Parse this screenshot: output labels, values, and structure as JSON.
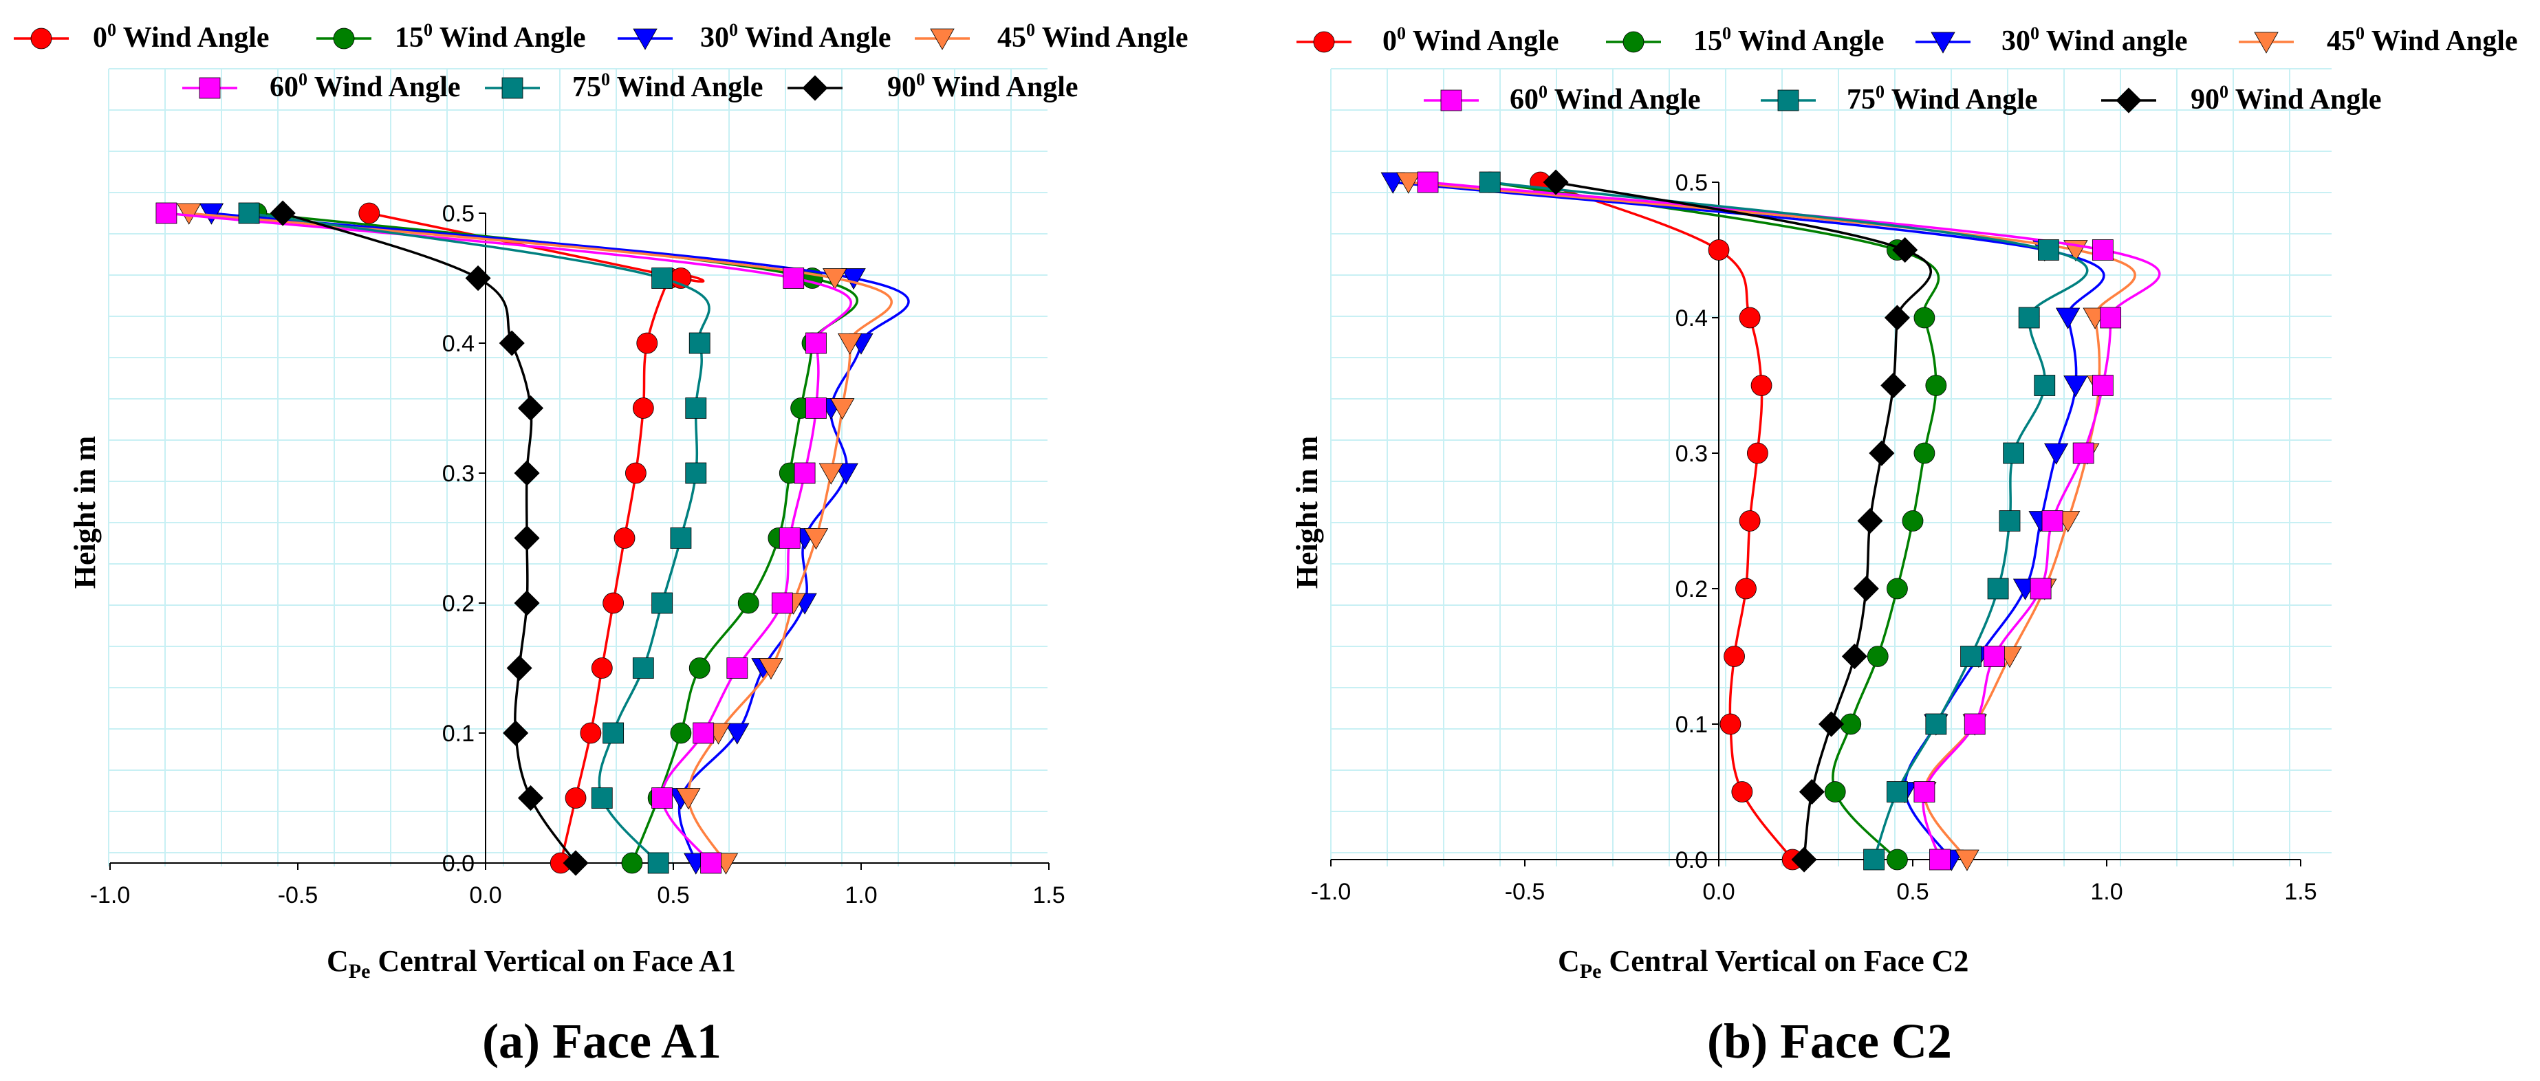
{
  "chart_data": [
    {
      "type": "line",
      "caption": "(a) Face A1",
      "xlabel": "Central Vertical on Face A1",
      "xlabel_symbol": "C",
      "xlabel_sub": "Pe",
      "ylabel": "Height in m",
      "xlim": [
        -1.0,
        1.5
      ],
      "ylim": [
        0.0,
        0.5
      ],
      "xticks": [
        "-1.0",
        "-0.5",
        "0.0",
        "0.5",
        "1.0",
        "1.5"
      ],
      "yticks": [
        "0.0",
        "0.1",
        "0.2",
        "0.3",
        "0.4",
        "0.5"
      ],
      "grid": true,
      "legend_position": "top",
      "series": [
        {
          "name": "Wind Angle",
          "angle": "0",
          "color": "#ff0000",
          "marker": "circle",
          "x": [
            0.2,
            0.24,
            0.28,
            0.31,
            0.34,
            0.37,
            0.4,
            0.42,
            0.43,
            0.49,
            0.52,
            -0.31
          ],
          "y": [
            0.0,
            0.05,
            0.1,
            0.15,
            0.2,
            0.25,
            0.3,
            0.35,
            0.4,
            0.45,
            0.45,
            0.5
          ]
        },
        {
          "name": "Wind Angle",
          "angle": "15",
          "color": "#008000",
          "marker": "circle",
          "x": [
            0.39,
            0.46,
            0.52,
            0.57,
            0.7,
            0.78,
            0.81,
            0.84,
            0.87,
            0.87,
            -0.61
          ],
          "y": [
            0.0,
            0.05,
            0.1,
            0.15,
            0.2,
            0.25,
            0.3,
            0.35,
            0.4,
            0.45,
            0.5
          ]
        },
        {
          "name": "Wind Angle",
          "angle": "30",
          "color": "#0000ff",
          "marker": "triangle-down",
          "x": [
            0.56,
            0.52,
            0.67,
            0.74,
            0.85,
            0.85,
            0.96,
            0.92,
            1.0,
            0.98,
            -0.73
          ],
          "y": [
            0.0,
            0.05,
            0.1,
            0.15,
            0.2,
            0.25,
            0.3,
            0.35,
            0.4,
            0.45,
            0.5
          ]
        },
        {
          "name": "Wind Angle",
          "angle": "45",
          "color": "#ff8040",
          "marker": "triangle-down",
          "x": [
            0.64,
            0.54,
            0.62,
            0.76,
            0.82,
            0.88,
            0.92,
            0.95,
            0.97,
            0.93,
            -0.79
          ],
          "y": [
            0.0,
            0.05,
            0.1,
            0.15,
            0.2,
            0.25,
            0.3,
            0.35,
            0.4,
            0.45,
            0.5
          ]
        },
        {
          "name": "Wind Angle",
          "angle": "60",
          "color": "#ff00ff",
          "marker": "square",
          "x": [
            0.6,
            0.47,
            0.58,
            0.67,
            0.79,
            0.81,
            0.85,
            0.88,
            0.88,
            0.82,
            -0.85
          ],
          "y": [
            0.0,
            0.05,
            0.1,
            0.15,
            0.2,
            0.25,
            0.3,
            0.35,
            0.4,
            0.45,
            0.5
          ]
        },
        {
          "name": "Wind Angle",
          "angle": "75",
          "color": "#008080",
          "marker": "square",
          "x": [
            0.46,
            0.31,
            0.34,
            0.42,
            0.47,
            0.52,
            0.56,
            0.56,
            0.57,
            0.47,
            -0.63
          ],
          "y": [
            0.0,
            0.05,
            0.1,
            0.15,
            0.2,
            0.25,
            0.3,
            0.35,
            0.4,
            0.45,
            0.5
          ]
        },
        {
          "name": "Wind Angle",
          "angle": "90",
          "color": "#000000",
          "marker": "diamond",
          "x": [
            0.24,
            0.12,
            0.08,
            0.09,
            0.11,
            0.11,
            0.11,
            0.12,
            0.07,
            -0.02,
            -0.54
          ],
          "y": [
            0.0,
            0.05,
            0.1,
            0.15,
            0.2,
            0.25,
            0.3,
            0.35,
            0.4,
            0.45,
            0.5
          ]
        }
      ]
    },
    {
      "type": "line",
      "caption": "(b) Face C2",
      "xlabel": "Central Vertical on Face C2",
      "xlabel_symbol": "C",
      "xlabel_sub": "Pe",
      "ylabel": "Height in m",
      "xlim": [
        -1.0,
        1.5
      ],
      "ylim": [
        0.0,
        0.5
      ],
      "xticks": [
        "-1.0",
        "-0.5",
        "0.0",
        "0.5",
        "1.0",
        "1.5"
      ],
      "yticks": [
        "0.0",
        "0.1",
        "0.2",
        "0.3",
        "0.4",
        "0.5"
      ],
      "grid": true,
      "legend_position": "top",
      "series": [
        {
          "name": "Wind Angle",
          "angle": "0",
          "color": "#ff0000",
          "marker": "circle",
          "x": [
            0.19,
            0.06,
            0.03,
            0.04,
            0.07,
            0.08,
            0.1,
            0.11,
            0.08,
            0.0,
            -0.46
          ],
          "y": [
            0.0,
            0.05,
            0.1,
            0.15,
            0.2,
            0.25,
            0.3,
            0.35,
            0.4,
            0.45,
            0.5
          ]
        },
        {
          "name": "Wind Angle",
          "angle": "15",
          "color": "#008000",
          "marker": "circle",
          "x": [
            0.46,
            0.3,
            0.34,
            0.41,
            0.46,
            0.5,
            0.53,
            0.56,
            0.53,
            0.46,
            -0.59
          ],
          "y": [
            0.0,
            0.05,
            0.1,
            0.15,
            0.2,
            0.25,
            0.3,
            0.35,
            0.4,
            0.45,
            0.5
          ]
        },
        {
          "name": "Wind angle",
          "angle": "30",
          "color": "#0000ff",
          "marker": "triangle-down",
          "x": [
            0.6,
            0.48,
            0.56,
            0.67,
            0.79,
            0.83,
            0.87,
            0.92,
            0.9,
            0.84,
            -0.84
          ],
          "y": [
            0.0,
            0.05,
            0.1,
            0.15,
            0.2,
            0.25,
            0.3,
            0.35,
            0.4,
            0.45,
            0.5
          ]
        },
        {
          "name": "Wind Angle",
          "angle": "45",
          "color": "#ff8040",
          "marker": "triangle-down",
          "x": [
            0.64,
            0.53,
            0.66,
            0.75,
            0.84,
            0.9,
            0.95,
            0.98,
            0.97,
            0.92,
            -0.8
          ],
          "y": [
            0.0,
            0.05,
            0.1,
            0.15,
            0.2,
            0.25,
            0.3,
            0.35,
            0.4,
            0.45,
            0.5
          ]
        },
        {
          "name": "Wind Angle",
          "angle": "60",
          "color": "#ff00ff",
          "marker": "square",
          "x": [
            0.57,
            0.53,
            0.66,
            0.71,
            0.83,
            0.86,
            0.94,
            0.99,
            1.01,
            0.99,
            -0.75
          ],
          "y": [
            0.0,
            0.05,
            0.1,
            0.15,
            0.2,
            0.25,
            0.3,
            0.35,
            0.4,
            0.45,
            0.5
          ]
        },
        {
          "name": "Wind Angle",
          "angle": "75",
          "color": "#008080",
          "marker": "square",
          "x": [
            0.4,
            0.46,
            0.56,
            0.65,
            0.72,
            0.75,
            0.76,
            0.84,
            0.8,
            0.85,
            -0.59
          ],
          "y": [
            0.0,
            0.05,
            0.1,
            0.15,
            0.2,
            0.25,
            0.3,
            0.35,
            0.4,
            0.45,
            0.5
          ]
        },
        {
          "name": "Wind Angle",
          "angle": "90",
          "color": "#000000",
          "marker": "diamond",
          "x": [
            0.22,
            0.24,
            0.29,
            0.35,
            0.38,
            0.39,
            0.42,
            0.45,
            0.46,
            0.48,
            -0.42
          ],
          "y": [
            0.0,
            0.05,
            0.1,
            0.15,
            0.2,
            0.25,
            0.3,
            0.35,
            0.4,
            0.45,
            0.5
          ]
        }
      ]
    }
  ]
}
